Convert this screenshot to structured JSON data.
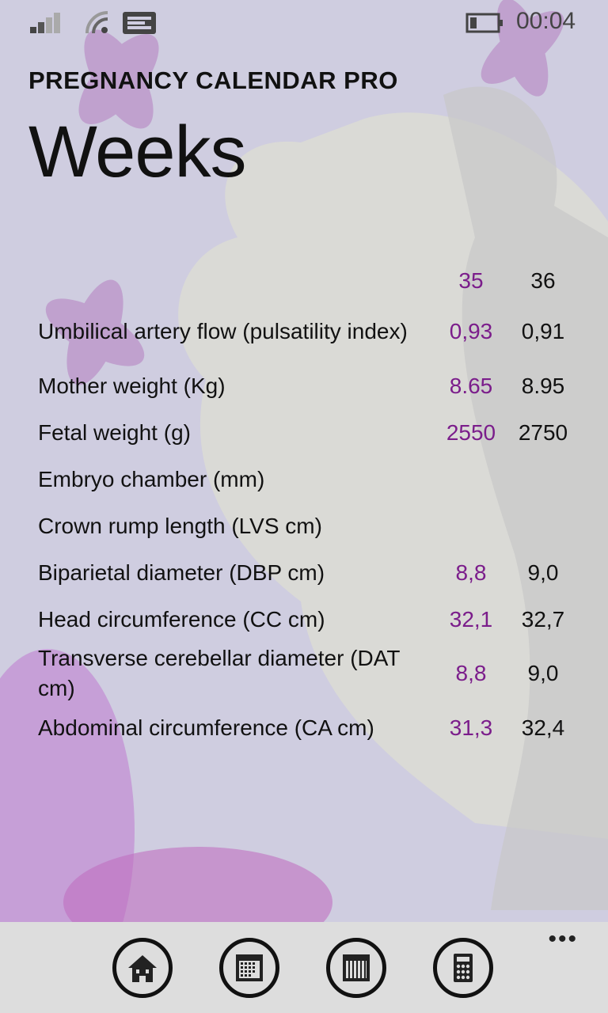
{
  "status": {
    "time": "00:04",
    "icons": [
      "signal-icon",
      "wifi-icon",
      "message-icon",
      "battery-icon"
    ]
  },
  "app": {
    "title": "PREGNANCY CALENDAR PRO",
    "page": "Weeks"
  },
  "table": {
    "columns": [
      "35",
      "36"
    ],
    "rows": [
      {
        "label": "Umbilical artery flow (pulsatility index)",
        "v35": "0,93",
        "v36": "0,91"
      },
      {
        "label": "Mother weight (Kg)",
        "v35": "8.65",
        "v36": "8.95"
      },
      {
        "label": "Fetal weight (g)",
        "v35": "2550",
        "v36": "2750"
      },
      {
        "label": "Embryo chamber (mm)",
        "v35": "",
        "v36": ""
      },
      {
        "label": "Crown rump length (LVS cm)",
        "v35": "",
        "v36": ""
      },
      {
        "label": "Biparietal diameter (DBP cm)",
        "v35": "8,8",
        "v36": "9,0"
      },
      {
        "label": "Head circumference (CC cm)",
        "v35": "32,1",
        "v36": "32,7"
      },
      {
        "label": "Transverse cerebellar diameter (DAT cm)",
        "v35": "8,8",
        "v36": "9,0"
      },
      {
        "label": "Abdominal circumference (CA cm)",
        "v35": "31,3",
        "v36": "32,4"
      }
    ]
  },
  "appbar": {
    "buttons": [
      "home-icon",
      "calendar-month-icon",
      "calendar-week-icon",
      "calculator-icon"
    ],
    "more": "•••"
  },
  "colors": {
    "accent": "#7b1d8b",
    "background": "#cfcde0",
    "appbar": "#dddddd"
  }
}
